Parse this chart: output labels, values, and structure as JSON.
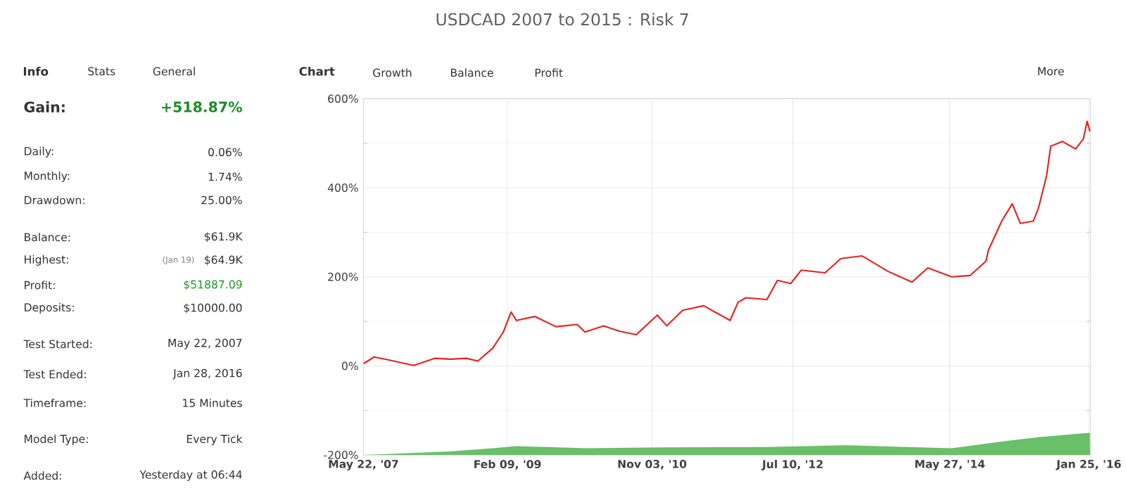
{
  "chart_data": {
    "type": "line",
    "title": "USDCAD 2007 to 2015 : Risk 7",
    "xlim": [
      "2007-05-22",
      "2016-02-01"
    ],
    "xticks": [
      {
        "value": "2007-05-22",
        "label": "May 22, '07"
      },
      {
        "value": "2009-02-09",
        "label": "Feb 09, '09"
      },
      {
        "value": "2010-11-03",
        "label": "Nov 03, '10"
      },
      {
        "value": "2012-07-10",
        "label": "Jul 10, '12"
      },
      {
        "value": "2014-05-27",
        "label": "May 27, '14"
      },
      {
        "value": "2016-01-25",
        "label": "Jan 25, '16"
      }
    ],
    "ylim": [
      -200,
      600
    ],
    "yticks": [
      {
        "value": -200,
        "label": "-200%"
      },
      {
        "value": 0,
        "label": "0%"
      },
      {
        "value": 200,
        "label": "200%"
      },
      {
        "value": 400,
        "label": "400%"
      },
      {
        "value": 600,
        "label": "600%"
      }
    ],
    "grid": true,
    "marker": "none",
    "line_style": "solid",
    "series": [
      {
        "color": "#e8211f",
        "x": [
          "2007-05-22",
          "2007-07-07",
          "2007-09-03",
          "2007-12-27",
          "2008-03-28",
          "2008-06-05",
          "2008-08-13",
          "2008-10-03",
          "2008-12-07",
          "2009-01-22",
          "2009-02-25",
          "2009-03-20",
          "2009-06-09",
          "2009-09-09",
          "2009-12-11",
          "2010-01-14",
          "2010-04-05",
          "2010-06-13",
          "2010-08-26",
          "2010-11-26",
          "2011-01-06",
          "2011-03-17",
          "2011-06-17",
          "2011-10-10",
          "2011-11-14",
          "2011-12-18",
          "2012-03-19",
          "2012-05-04",
          "2012-07-01",
          "2012-08-16",
          "2012-11-28",
          "2013-02-05",
          "2013-05-08",
          "2013-08-31",
          "2013-12-13",
          "2014-02-20",
          "2014-06-04",
          "2014-08-24",
          "2014-11-01",
          "2014-11-12",
          "2015-01-09",
          "2015-02-24",
          "2015-03-31",
          "2015-05-27",
          "2015-06-19",
          "2015-07-24",
          "2015-08-11",
          "2015-10-01",
          "2015-11-28",
          "2016-01-01",
          "2016-01-17",
          "2016-01-30"
        ],
        "values": [
          5,
          20,
          14,
          1,
          17,
          15,
          17,
          11,
          40,
          76,
          121,
          102,
          111,
          88,
          93,
          76,
          90,
          78,
          70,
          114,
          90,
          125,
          135,
          102,
          143,
          153,
          149,
          192,
          185,
          215,
          209,
          241,
          247,
          212,
          188,
          220,
          200,
          203,
          235,
          260,
          325,
          364,
          320,
          325,
          355,
          427,
          493,
          504,
          487,
          510,
          549,
          526
        ]
      },
      {
        "type": "area",
        "color": "#6abf69",
        "x": [
          "2007-05-22",
          "2008-06-05",
          "2008-12-07",
          "2009-03-20",
          "2010-01-14",
          "2011-01-06",
          "2012-03-19",
          "2013-03-01",
          "2014-06-04",
          "2015-01-09",
          "2015-06-19",
          "2016-01-29",
          "2016-01-30"
        ],
        "values": [
          -200,
          -192,
          -185,
          -180,
          -185,
          -183,
          -182,
          -178,
          -185,
          -170,
          -160,
          -150,
          -200
        ]
      }
    ],
    "annotations": [
      "Info",
      "Stats",
      "General",
      "Gain:",
      "+518.87%",
      "Daily:",
      "0.06%",
      "Monthly:",
      "1.74%",
      "Drawdown:",
      "25.00%",
      "Balance:",
      "$61.9K",
      "Highest:",
      "(Jan 19)",
      "$64.9K",
      "Profit:",
      "$51887.09",
      "Deposits:",
      "$10000.00",
      "Test Started:",
      "May 22, 2007",
      "Test Ended:",
      "Jan 28, 2016",
      "Timeframe:",
      "15 Minutes",
      "Model Type:",
      "Every Tick",
      "Added:",
      "Yesterday at 06:44",
      "Chart",
      "Growth",
      "Balance",
      "Profit",
      "More"
    ]
  }
}
